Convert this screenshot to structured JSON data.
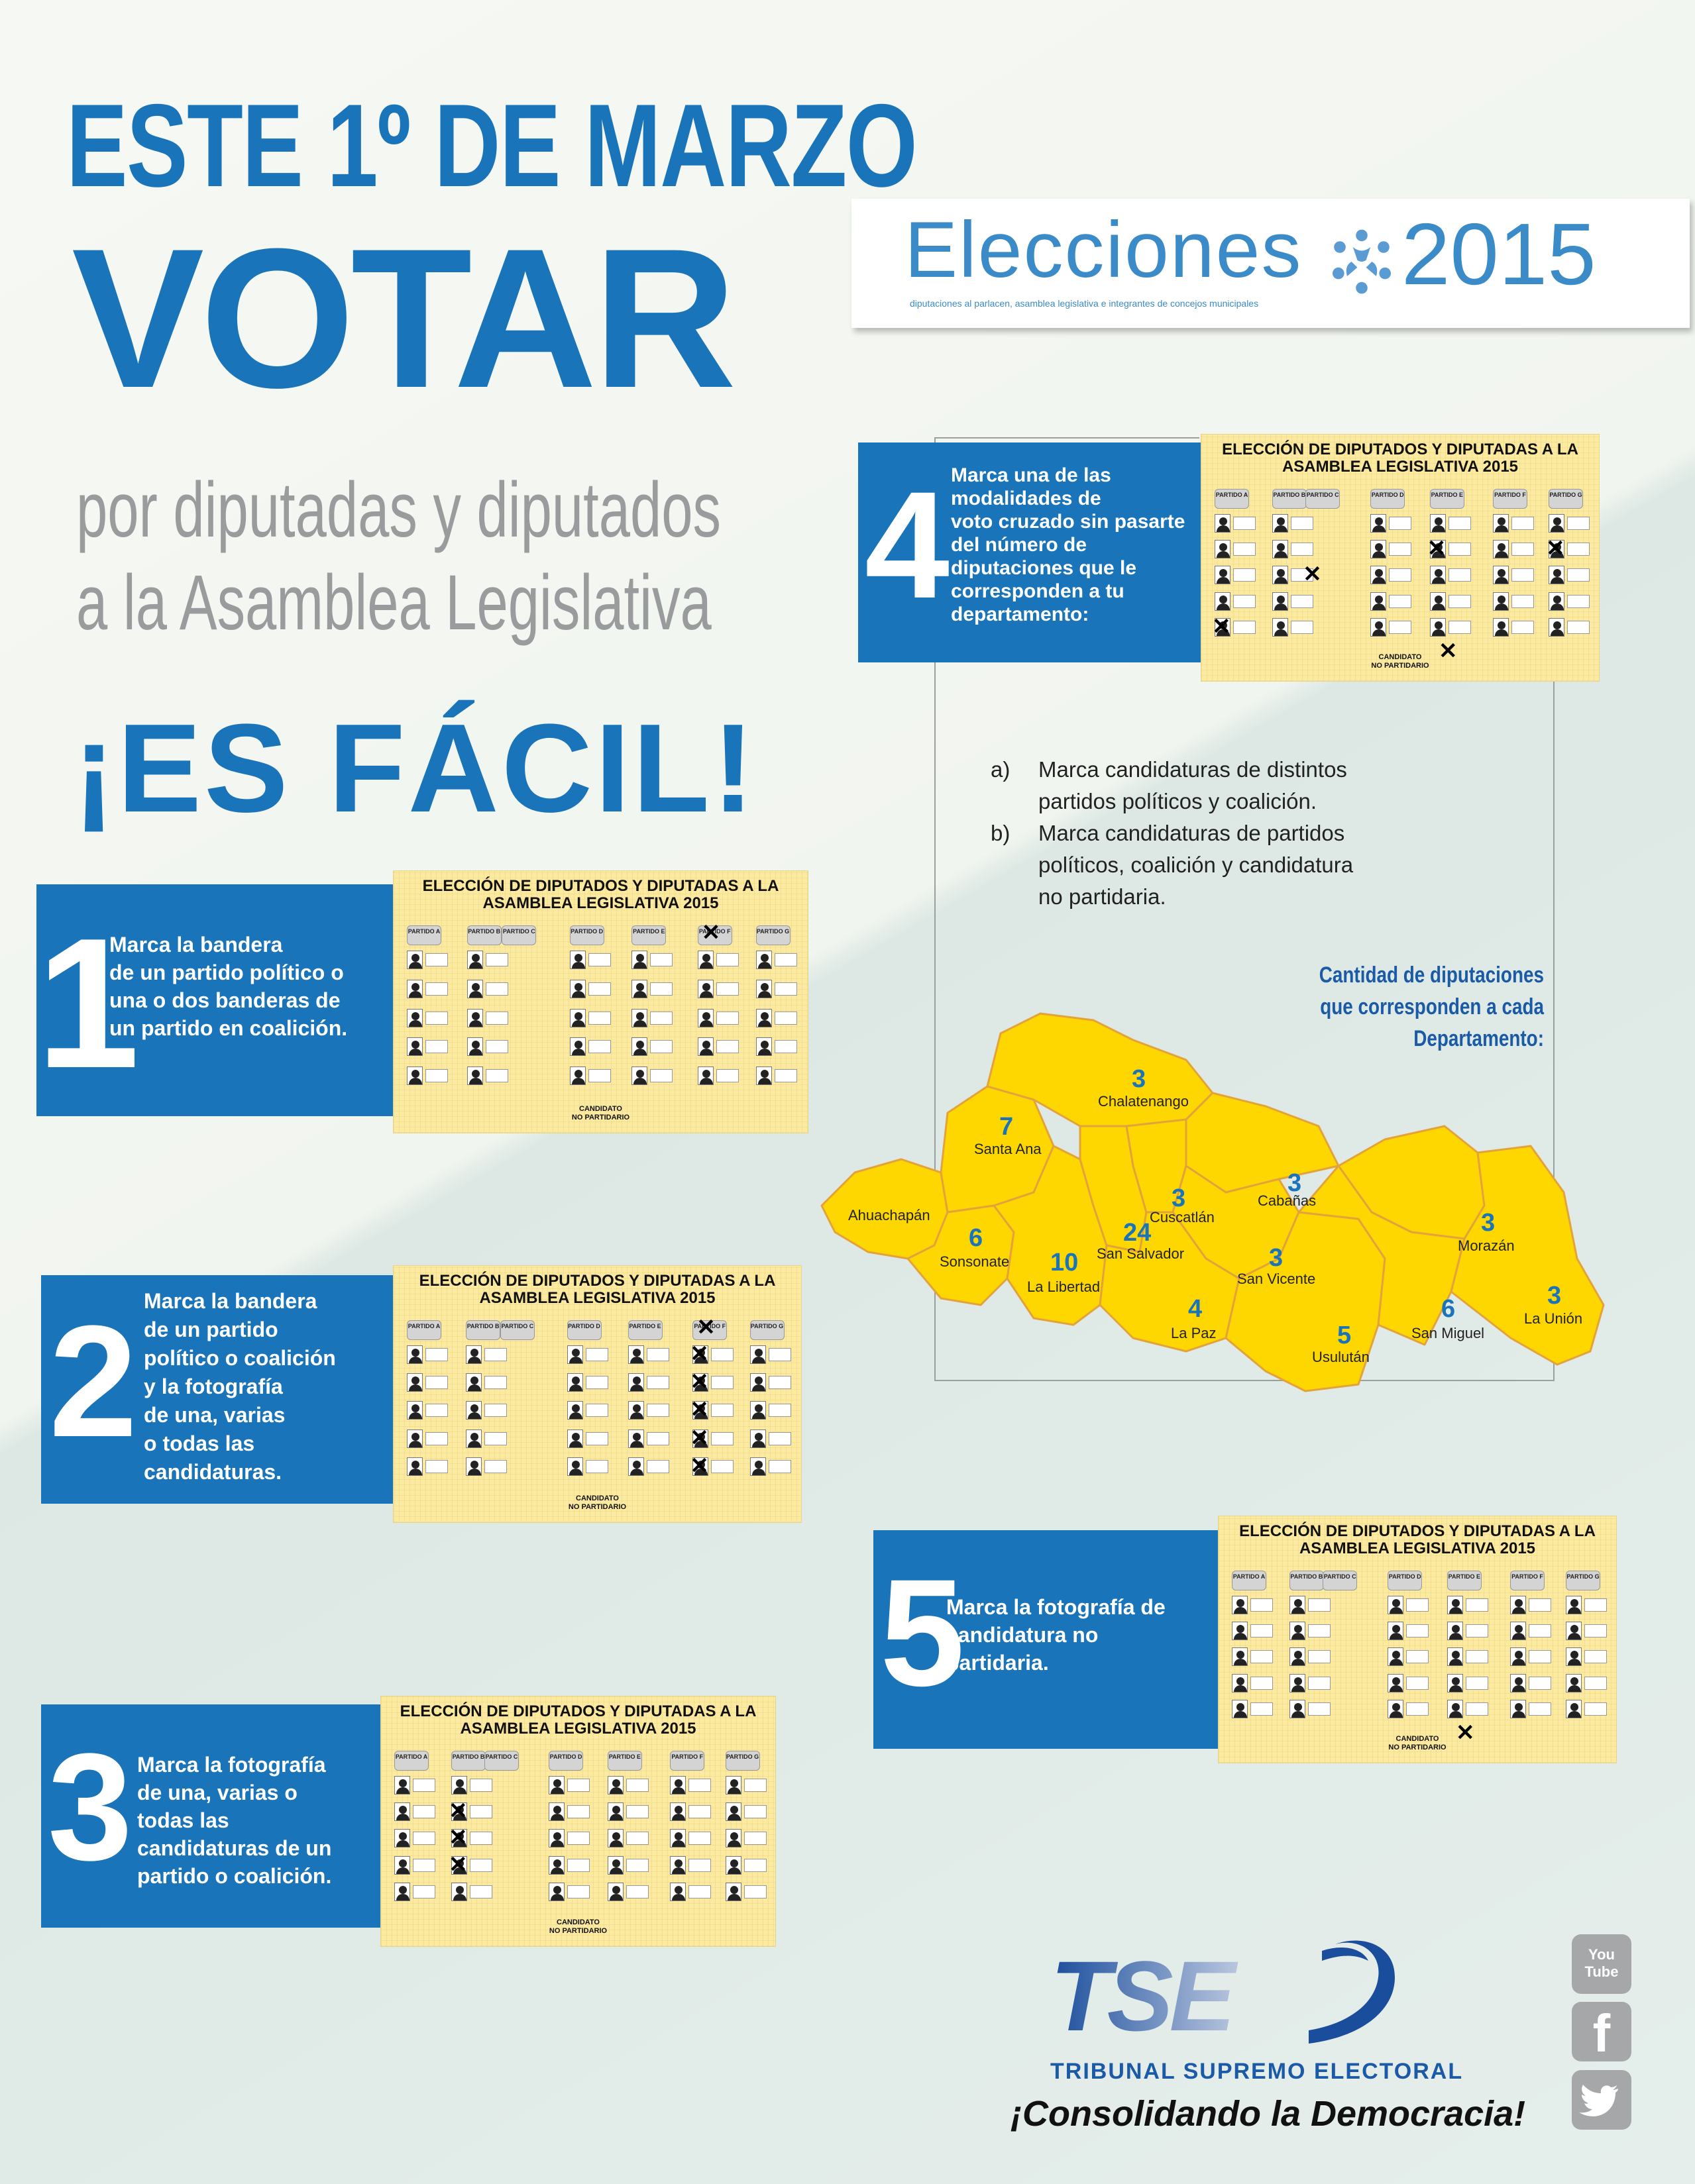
{
  "headline": {
    "line1": "ESTE 1º DE MARZO",
    "line2": "VOTAR",
    "line3a": "por diputadas y diputados",
    "line3b": "a la Asamblea Legislativa",
    "line4": "¡ES FÁCIL!"
  },
  "elections_logo": {
    "word": "Elecciones",
    "year": "2015",
    "subtitle": "diputaciones al parlacen, asamblea legislativa e integrantes de concejos municipales"
  },
  "ballot": {
    "title_line1": "ELECCIÓN DE DIPUTADOS Y DIPUTADAS A LA",
    "title_line2": "ASAMBLEA LEGISLATIVA 2015",
    "footer_line1": "CANDIDATO",
    "footer_line2": "NO PARTIDARIO",
    "party_labels": [
      "PARTIDO A",
      "PARTIDO B",
      "PARTIDO C",
      "PARTIDO D",
      "PARTIDO E",
      "PARTIDO F",
      "PARTIDO G"
    ]
  },
  "steps": [
    {
      "number": "1",
      "text": [
        "Marca la bandera",
        "de un partido político o",
        "una o dos banderas de",
        "un partido en coalición."
      ]
    },
    {
      "number": "2",
      "text": [
        "Marca la bandera",
        "de un partido",
        "político o coalición",
        "y la fotografía",
        "de una, varias",
        "o todas las",
        "candidaturas."
      ]
    },
    {
      "number": "3",
      "text": [
        "Marca la fotografía",
        "de una, varias o",
        "todas las",
        "candidaturas de un",
        "partido o coalición."
      ]
    },
    {
      "number": "4",
      "text": [
        "Marca una de las",
        "modalidades de",
        "voto cruzado sin pasarte",
        "del número de",
        "diputaciones que le",
        "corresponden a tu",
        "departamento:"
      ]
    },
    {
      "number": "5",
      "text": [
        "Marca la fotografía de",
        "candidatura no",
        "partidaria."
      ]
    }
  ],
  "options": [
    {
      "key": "a)",
      "lines": [
        "Marca candidaturas de distintos",
        "partidos políticos y coalición."
      ]
    },
    {
      "key": "b)",
      "lines": [
        "Marca candidaturas de partidos",
        "políticos, coalición y candidatura",
        "no partidaria."
      ]
    }
  ],
  "map": {
    "title": [
      "Cantidad de diputaciones",
      "que corresponden a cada",
      "Departamento:"
    ],
    "fill_color": "#fed700",
    "border_color": "#e3a33a",
    "departments": [
      {
        "name": "Chalatenango",
        "seats": "3"
      },
      {
        "name": "Santa Ana",
        "seats": "7"
      },
      {
        "name": "Ahuachapán",
        "seats": ""
      },
      {
        "name": "Cuscatlán",
        "seats": "3"
      },
      {
        "name": "Cabañas",
        "seats": "3"
      },
      {
        "name": "Sonsonate",
        "seats": "6"
      },
      {
        "name": "San Salvador",
        "seats": "24"
      },
      {
        "name": "La Libertad",
        "seats": "10"
      },
      {
        "name": "San Vicente",
        "seats": "3"
      },
      {
        "name": "La Paz",
        "seats": "4"
      },
      {
        "name": "Usulután",
        "seats": "5"
      },
      {
        "name": "San Miguel",
        "seats": "6"
      },
      {
        "name": "Morazán",
        "seats": "3"
      },
      {
        "name": "La Unión",
        "seats": "3"
      }
    ]
  },
  "tse": {
    "acronym": "TSE",
    "name": "TRIBUNAL SUPREMO ELECTORAL",
    "slogan": "¡Consolidando la Democracia!"
  },
  "social": [
    {
      "icon": "youtube-icon",
      "label": "You Tube"
    },
    {
      "icon": "facebook-icon",
      "label": "f"
    },
    {
      "icon": "twitter-icon",
      "label": ""
    }
  ],
  "colors": {
    "brand_blue": "#1a74b9",
    "gray_text": "#9a9b9d",
    "ballot_yellow": "#fbeaa0"
  }
}
